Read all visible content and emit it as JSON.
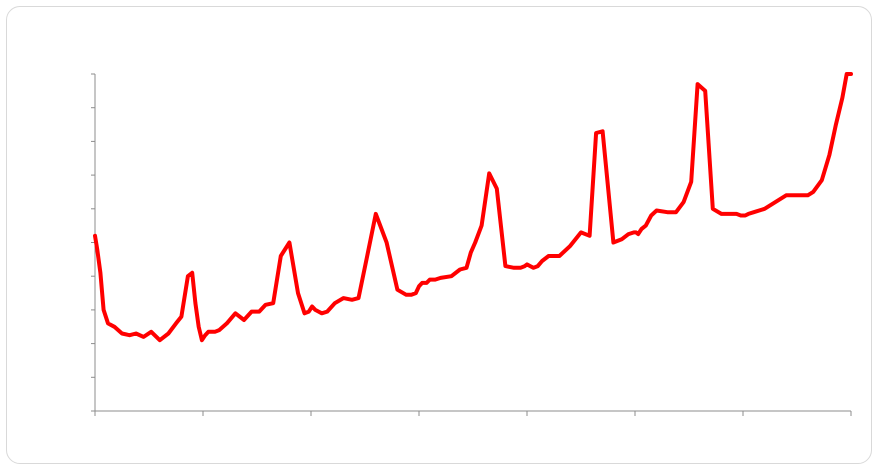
{
  "chart_data": {
    "type": "line",
    "title": "",
    "xlabel": "",
    "ylabel": "",
    "legend": "none",
    "grid": false,
    "tick_labels_shown": false,
    "xlim": [
      0,
      7
    ],
    "ylim": [
      0,
      10
    ],
    "x_major_tick_count": 8,
    "y_major_tick_count": 11,
    "series": [
      {
        "color": "#ff0000",
        "x": [
          0,
          0.02,
          0.05,
          0.08,
          0.12,
          0.18,
          0.25,
          0.32,
          0.38,
          0.45,
          0.52,
          0.6,
          0.68,
          0.75,
          0.8,
          0.86,
          0.9,
          0.93,
          0.96,
          0.99,
          1.02,
          1.05,
          1.08,
          1.11,
          1.15,
          1.22,
          1.3,
          1.38,
          1.45,
          1.52,
          1.58,
          1.65,
          1.72,
          1.8,
          1.88,
          1.94,
          1.98,
          2.01,
          2.04,
          2.07,
          2.1,
          2.15,
          2.22,
          2.3,
          2.38,
          2.44,
          2.52,
          2.6,
          2.7,
          2.8,
          2.88,
          2.93,
          2.97,
          3.0,
          3.03,
          3.07,
          3.1,
          3.15,
          3.2,
          3.3,
          3.38,
          3.44,
          3.48,
          3.52,
          3.58,
          3.65,
          3.72,
          3.8,
          3.88,
          3.94,
          3.98,
          4.0,
          4.03,
          4.06,
          4.1,
          4.14,
          4.2,
          4.3,
          4.4,
          4.5,
          4.58,
          4.64,
          4.7,
          4.8,
          4.88,
          4.94,
          4.99,
          5.01,
          5.03,
          5.06,
          5.1,
          5.15,
          5.2,
          5.3,
          5.38,
          5.45,
          5.52,
          5.58,
          5.65,
          5.72,
          5.8,
          5.88,
          5.94,
          5.98,
          6.0,
          6.02,
          6.05,
          6.1,
          6.2,
          6.3,
          6.4,
          6.5,
          6.6,
          6.65,
          6.73,
          6.8,
          6.86,
          6.92,
          6.96,
          7.0
        ],
        "y": [
          5.2,
          4.8,
          4.1,
          3.0,
          2.6,
          2.5,
          2.3,
          2.25,
          2.3,
          2.2,
          2.35,
          2.1,
          2.3,
          2.6,
          2.8,
          4.0,
          4.1,
          3.2,
          2.5,
          2.1,
          2.25,
          2.35,
          2.35,
          2.35,
          2.4,
          2.6,
          2.9,
          2.7,
          2.95,
          2.95,
          3.15,
          3.2,
          4.6,
          5.0,
          3.5,
          2.9,
          2.95,
          3.1,
          3.0,
          2.95,
          2.9,
          2.95,
          3.2,
          3.35,
          3.3,
          3.35,
          4.6,
          5.85,
          5.0,
          3.6,
          3.45,
          3.45,
          3.5,
          3.7,
          3.8,
          3.8,
          3.9,
          3.9,
          3.95,
          4.0,
          4.2,
          4.25,
          4.7,
          5.0,
          5.5,
          7.05,
          6.6,
          4.3,
          4.25,
          4.25,
          4.3,
          4.35,
          4.3,
          4.25,
          4.3,
          4.45,
          4.6,
          4.6,
          4.9,
          5.3,
          5.2,
          8.25,
          8.3,
          5.0,
          5.1,
          5.25,
          5.3,
          5.3,
          5.25,
          5.4,
          5.5,
          5.8,
          5.95,
          5.9,
          5.9,
          6.2,
          6.8,
          9.7,
          9.5,
          6.0,
          5.85,
          5.85,
          5.85,
          5.8,
          5.8,
          5.8,
          5.85,
          5.9,
          6.0,
          6.2,
          6.4,
          6.4,
          6.4,
          6.5,
          6.85,
          7.6,
          8.5,
          9.3,
          10.0,
          10.0
        ]
      }
    ]
  }
}
